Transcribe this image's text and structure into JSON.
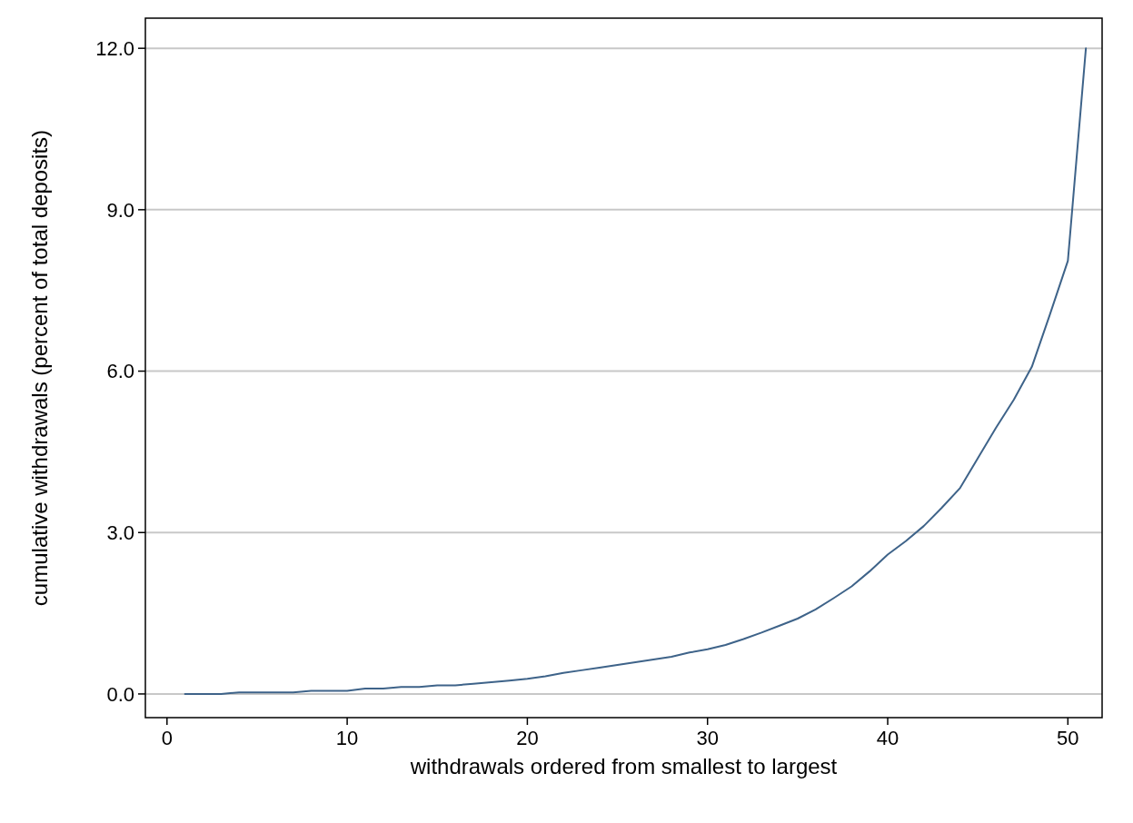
{
  "chart_data": {
    "type": "line",
    "xlabel": "withdrawals ordered from smallest to largest",
    "ylabel": "cumulative withdrawals (percent of total deposits)",
    "x": [
      1,
      2,
      3,
      4,
      5,
      6,
      7,
      8,
      9,
      10,
      11,
      12,
      13,
      14,
      15,
      16,
      17,
      18,
      19,
      20,
      21,
      22,
      23,
      24,
      25,
      26,
      27,
      28,
      29,
      30,
      31,
      32,
      33,
      34,
      35,
      36,
      37,
      38,
      39,
      40,
      41,
      42,
      43,
      44,
      45,
      46,
      47,
      48,
      49,
      50,
      51
    ],
    "series": [
      {
        "color": "#3e6389",
        "values": [
          0,
          0,
          0,
          0.03,
          0.03,
          0.03,
          0.03,
          0.06,
          0.06,
          0.06,
          0.1,
          0.1,
          0.13,
          0.13,
          0.16,
          0.16,
          0.19,
          0.22,
          0.25,
          0.28,
          0.33,
          0.39,
          0.44,
          0.49,
          0.54,
          0.59,
          0.64,
          0.69,
          0.77,
          0.83,
          0.91,
          1.02,
          1.14,
          1.27,
          1.4,
          1.57,
          1.78,
          2.0,
          2.28,
          2.59,
          2.84,
          3.12,
          3.46,
          3.82,
          4.38,
          4.94,
          5.47,
          6.08,
          7.05,
          8.05,
          12.0
        ]
      }
    ],
    "xlim": [
      -1.2,
      51.9
    ],
    "xticks": [
      0,
      10,
      20,
      30,
      40,
      50
    ],
    "ylim": [
      -0.44,
      12.56
    ],
    "yticks": [
      {
        "value": 0,
        "label": "0.0"
      },
      {
        "value": 3,
        "label": "3.0"
      },
      {
        "value": 6,
        "label": "6.0"
      },
      {
        "value": 9,
        "label": "9.0"
      },
      {
        "value": 12,
        "label": "12.0"
      }
    ],
    "grid": "y",
    "marker": "none",
    "line_style": "solid"
  }
}
